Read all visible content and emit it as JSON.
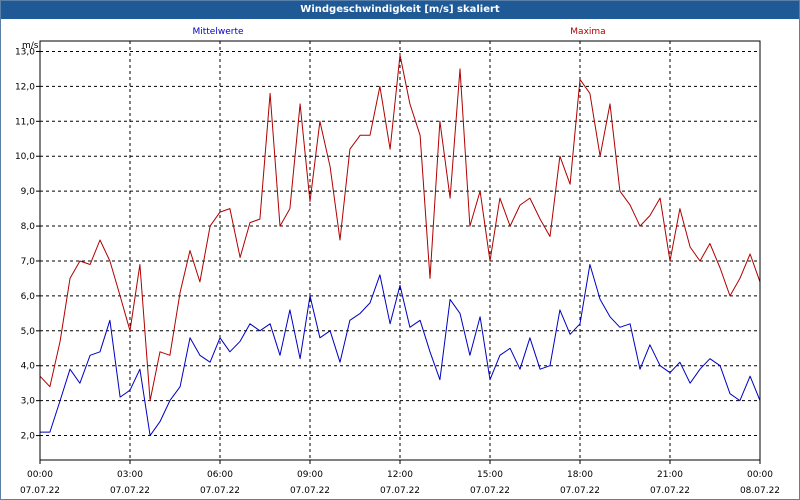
{
  "title": "Windgeschwindigkeit [m/s] skaliert",
  "chart_data": {
    "type": "line",
    "ylabel": "m/s",
    "ylim": [
      1.3,
      13.3
    ],
    "xlim": [
      0,
      24
    ],
    "y_ticks": [
      "2,0",
      "3,0",
      "4,0",
      "5,0",
      "6,0",
      "7,0",
      "8,0",
      "9,0",
      "10,0",
      "11,0",
      "12,0",
      "13,0"
    ],
    "x_ticks": [
      {
        "time": "00:00",
        "date": "07.07.22"
      },
      {
        "time": "03:00",
        "date": "07.07.22"
      },
      {
        "time": "06:00",
        "date": "07.07.22"
      },
      {
        "time": "09:00",
        "date": "07.07.22"
      },
      {
        "time": "12:00",
        "date": "07.07.22"
      },
      {
        "time": "15:00",
        "date": "07.07.22"
      },
      {
        "time": "18:00",
        "date": "07.07.22"
      },
      {
        "time": "21:00",
        "date": "07.07.22"
      },
      {
        "time": "00:00",
        "date": "08.07.22"
      }
    ],
    "grid": true,
    "series": [
      {
        "name": "Mittelwerte",
        "color": "#0000c0",
        "x": [
          0,
          0.33,
          0.67,
          1,
          1.33,
          1.67,
          2,
          2.33,
          2.67,
          3,
          3.33,
          3.67,
          4,
          4.33,
          4.67,
          5,
          5.33,
          5.67,
          6,
          6.33,
          6.67,
          7,
          7.33,
          7.67,
          8,
          8.33,
          8.67,
          9,
          9.33,
          9.67,
          10,
          10.33,
          10.67,
          11,
          11.33,
          11.67,
          12,
          12.33,
          12.67,
          13,
          13.33,
          13.67,
          14,
          14.33,
          14.67,
          15,
          15.33,
          15.67,
          16,
          16.33,
          16.67,
          17,
          17.33,
          17.67,
          18,
          18.33,
          18.67,
          19,
          19.33,
          19.67,
          20,
          20.33,
          20.67,
          21,
          21.33,
          21.67,
          22,
          22.33,
          22.67,
          23,
          23.33,
          23.67,
          24
        ],
        "values": [
          2.1,
          2.1,
          3.0,
          3.9,
          3.5,
          4.3,
          4.4,
          5.3,
          3.1,
          3.3,
          3.9,
          2.0,
          2.4,
          3.0,
          3.4,
          4.8,
          4.3,
          4.1,
          4.8,
          4.4,
          4.7,
          5.2,
          5.0,
          5.2,
          4.3,
          5.6,
          4.2,
          6.0,
          4.8,
          5.0,
          4.1,
          5.3,
          5.5,
          5.8,
          6.6,
          5.2,
          6.3,
          5.1,
          5.3,
          4.4,
          3.6,
          5.9,
          5.5,
          4.3,
          5.4,
          3.6,
          4.3,
          4.5,
          3.9,
          4.8,
          3.9,
          4.0,
          5.6,
          4.9,
          5.2,
          6.9,
          5.9,
          5.4,
          5.1,
          5.2,
          3.9,
          4.6,
          4.0,
          3.8,
          4.1,
          3.5,
          3.9,
          4.2,
          4.0,
          3.2,
          3.0,
          3.7,
          3.0
        ]
      },
      {
        "name": "Maxima",
        "color": "#b00000",
        "x": [
          0,
          0.33,
          0.67,
          1,
          1.33,
          1.67,
          2,
          2.33,
          2.67,
          3,
          3.33,
          3.67,
          4,
          4.33,
          4.67,
          5,
          5.33,
          5.67,
          6,
          6.33,
          6.67,
          7,
          7.33,
          7.67,
          8,
          8.33,
          8.67,
          9,
          9.33,
          9.67,
          10,
          10.33,
          10.67,
          11,
          11.33,
          11.67,
          12,
          12.33,
          12.67,
          13,
          13.33,
          13.67,
          14,
          14.33,
          14.67,
          15,
          15.33,
          15.67,
          16,
          16.33,
          16.67,
          17,
          17.33,
          17.67,
          18,
          18.33,
          18.67,
          19,
          19.33,
          19.67,
          20,
          20.33,
          20.67,
          21,
          21.33,
          21.67,
          22,
          22.33,
          22.67,
          23,
          23.33,
          23.67,
          24
        ],
        "values": [
          3.7,
          3.4,
          4.7,
          6.5,
          7.0,
          6.9,
          7.6,
          7.0,
          6.0,
          5.0,
          6.9,
          3.0,
          4.4,
          4.3,
          6.1,
          7.3,
          6.4,
          8.0,
          8.4,
          8.5,
          7.1,
          8.1,
          8.2,
          11.8,
          8.0,
          8.5,
          11.5,
          8.7,
          11.0,
          9.7,
          7.6,
          10.2,
          10.6,
          10.6,
          12.0,
          10.2,
          12.9,
          11.5,
          10.6,
          6.5,
          11.0,
          8.8,
          12.5,
          8.0,
          9.0,
          7.0,
          8.8,
          8.0,
          8.6,
          8.8,
          8.2,
          7.7,
          10.0,
          9.2,
          12.2,
          11.8,
          10.0,
          11.5,
          9.0,
          8.6,
          8.0,
          8.3,
          8.8,
          7.0,
          8.5,
          7.4,
          7.0,
          7.5,
          6.8,
          6.0,
          6.5,
          7.2,
          6.4
        ]
      }
    ]
  }
}
